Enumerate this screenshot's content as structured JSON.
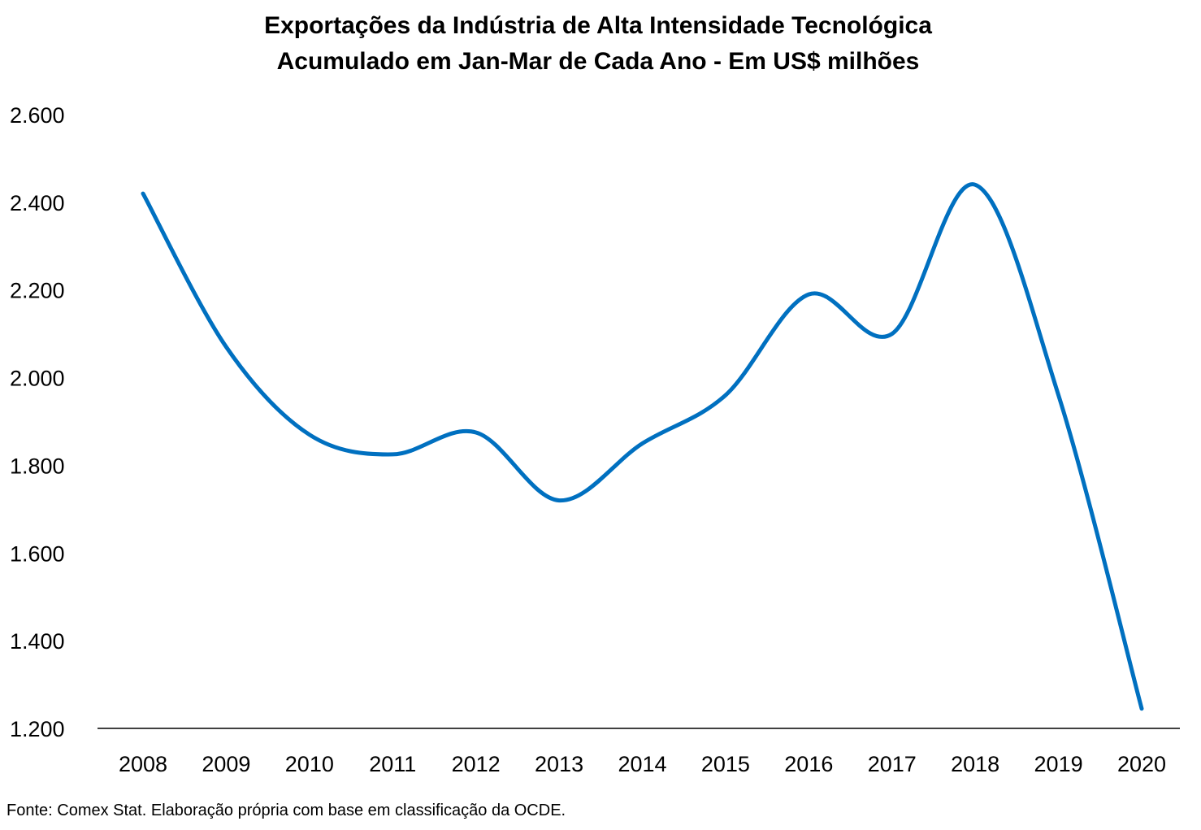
{
  "chart_data": {
    "type": "line",
    "title": "Exportações da Indústria de Alta Intensidade Tecnológica",
    "subtitle": "Acumulado em Jan-Mar de Cada Ano - Em US$ milhões",
    "x": [
      "2008",
      "2009",
      "2010",
      "2011",
      "2012",
      "2013",
      "2014",
      "2015",
      "2016",
      "2017",
      "2018",
      "2019",
      "2020"
    ],
    "series": [
      {
        "values": [
          2420,
          2070,
          1870,
          1825,
          1875,
          1720,
          1850,
          1960,
          2190,
          2100,
          2440,
          1960,
          1245
        ],
        "color": "#0070C0"
      }
    ],
    "ylim": [
      1200,
      2600
    ],
    "yticks": [
      1200,
      1400,
      1600,
      1800,
      2000,
      2200,
      2400,
      2600
    ],
    "ytick_labels": [
      "1.200",
      "1.400",
      "1.600",
      "1.800",
      "2.000",
      "2.200",
      "2.400",
      "2.600"
    ],
    "xlabel": "",
    "ylabel": "",
    "grid": false,
    "legend": "none",
    "smooth": true
  },
  "source_note": "Fonte: Comex Stat. Elaboração própria com base em classificação da OCDE."
}
